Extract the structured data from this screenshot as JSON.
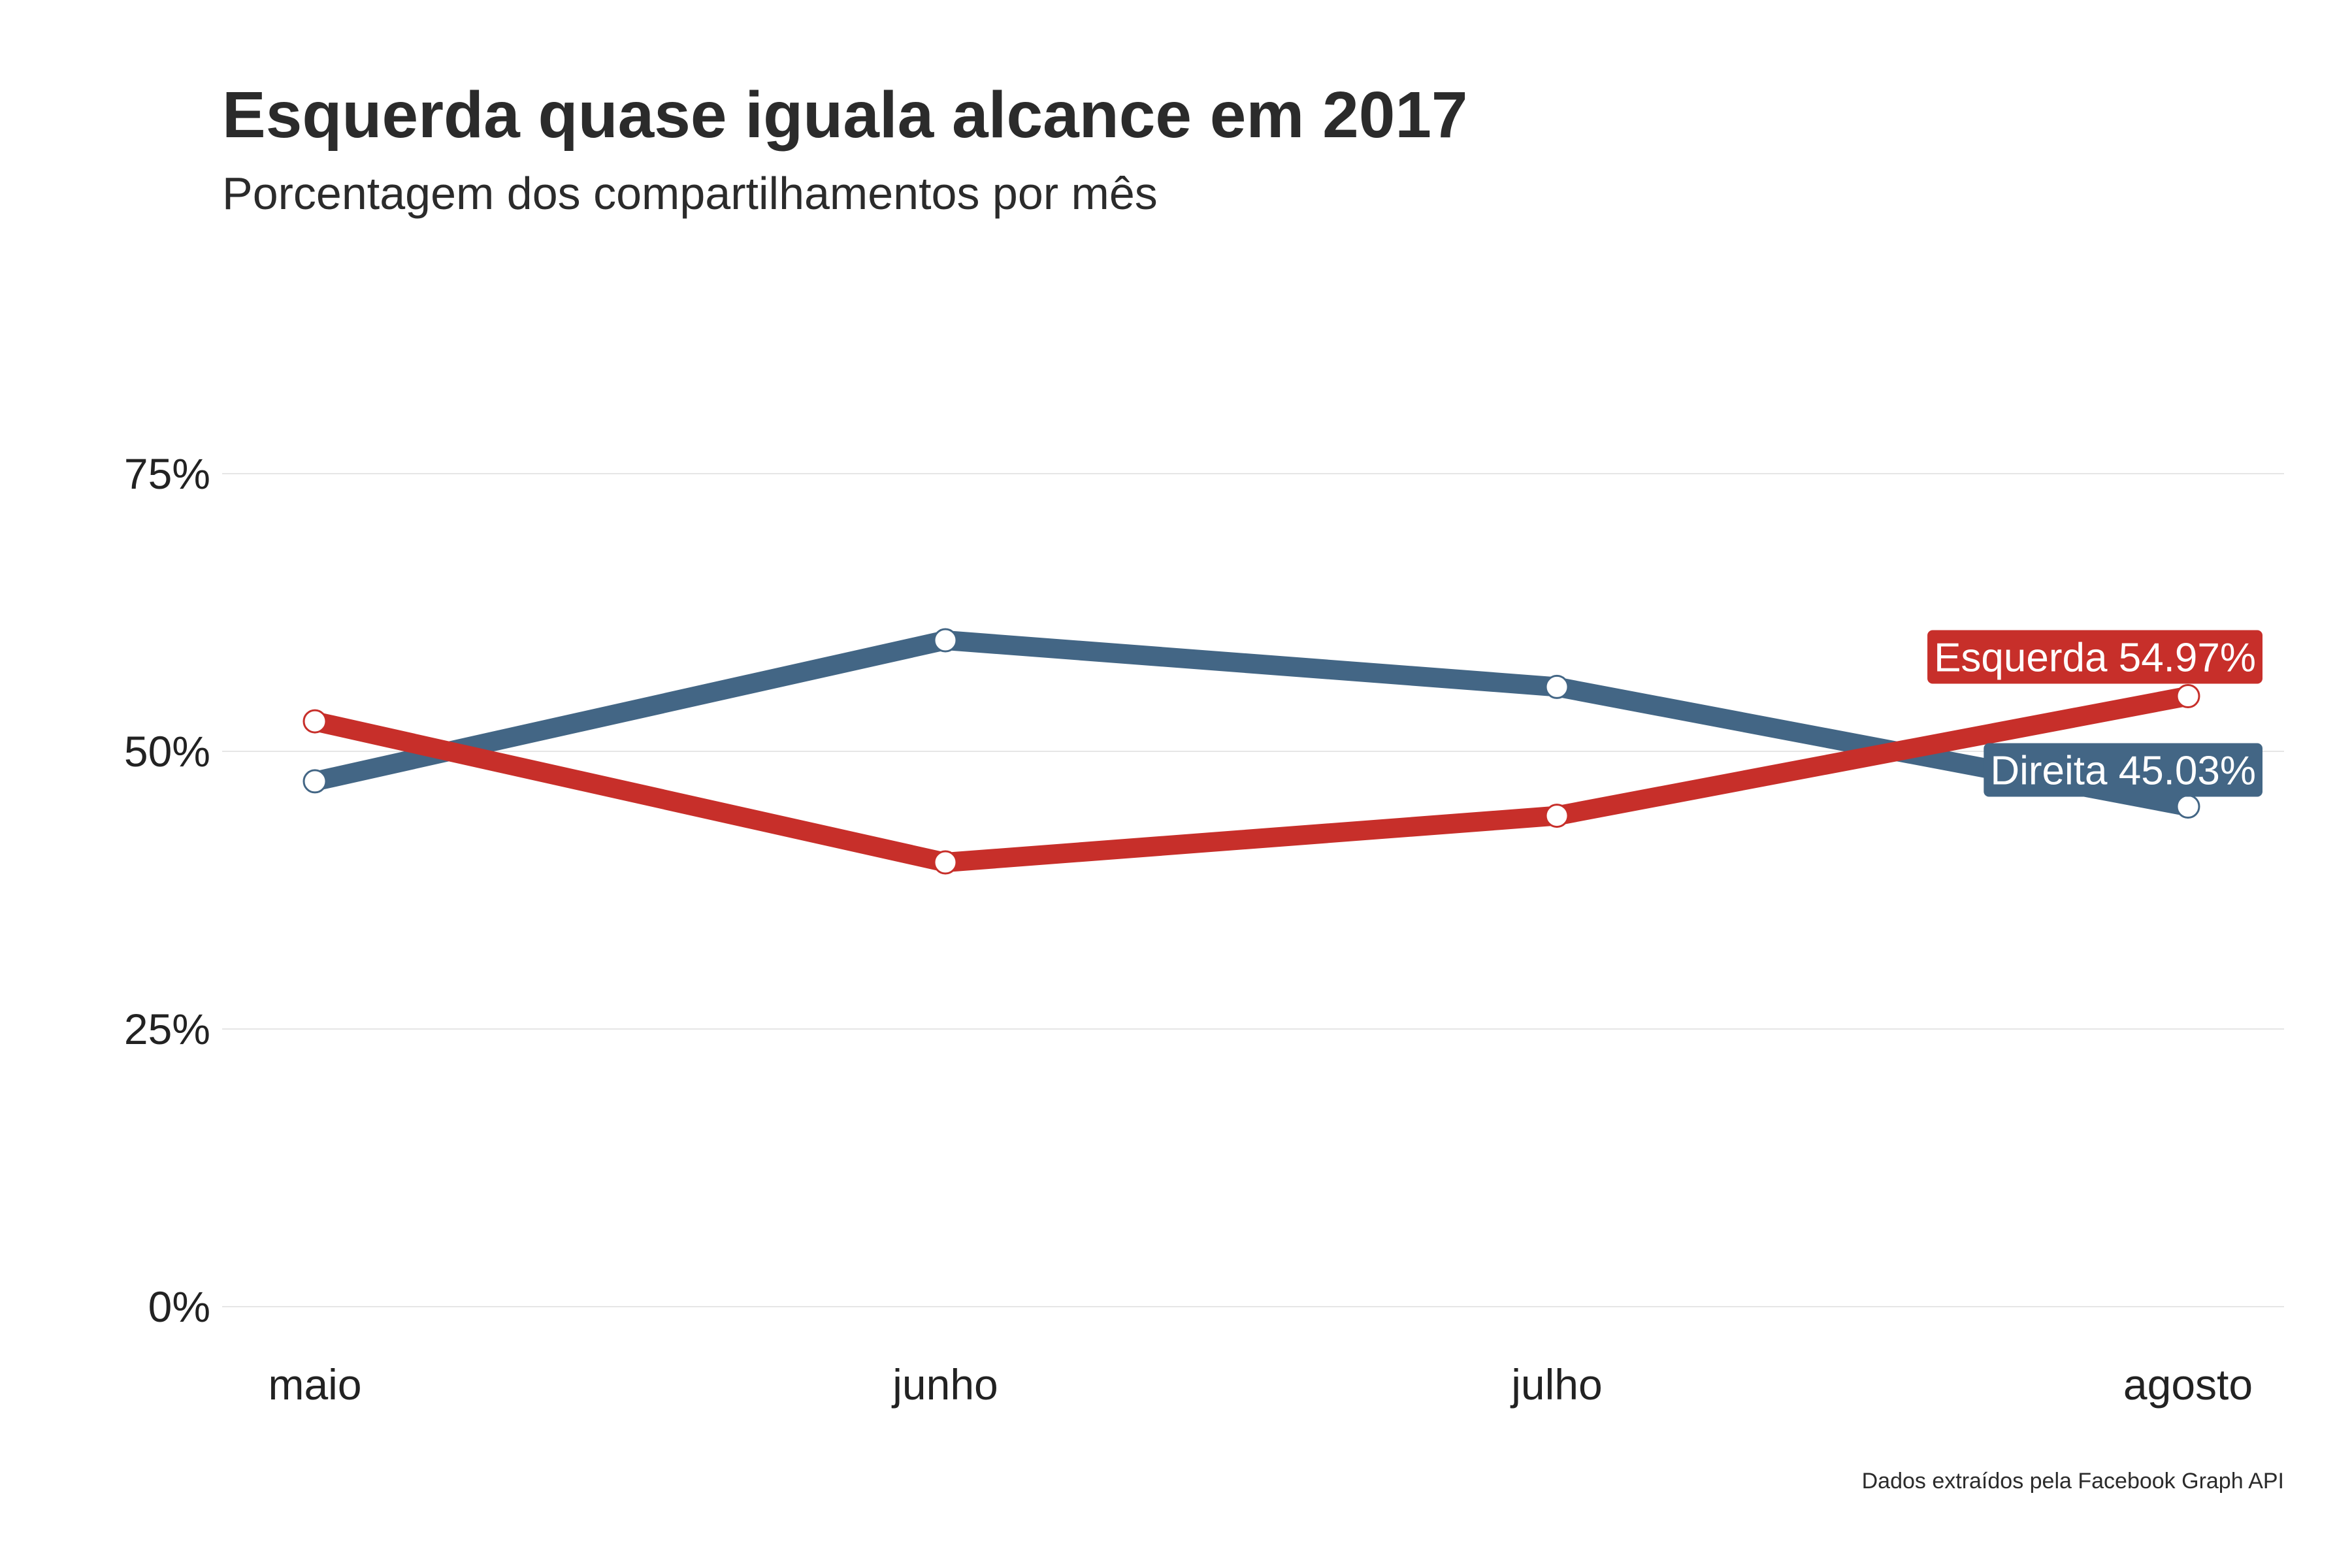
{
  "chart_data": {
    "type": "line",
    "title": "Esquerda quase iguala alcance em 2017",
    "subtitle": "Porcentagem dos compartilhamentos por mês",
    "caption": "Dados extraídos pela Facebook Graph API",
    "xlabel": "",
    "ylabel": "",
    "categories": [
      "maio",
      "junho",
      "julho",
      "agosto"
    ],
    "ylim": [
      0,
      75
    ],
    "yticks": [
      0,
      25,
      50,
      75
    ],
    "ytick_labels": [
      "0%",
      "25%",
      "50%",
      "75%"
    ],
    "grid": "horizontal",
    "legend": "none",
    "series": [
      {
        "key": "direita",
        "values": [
          47.3,
          60.0,
          55.8,
          45.03
        ],
        "color": "#436685",
        "end_label": "Direita 45.03%"
      },
      {
        "key": "esquerda",
        "values": [
          52.7,
          40.0,
          44.2,
          54.97
        ],
        "color": "#c72f2a",
        "end_label": "Esquerda 54.97%"
      }
    ]
  }
}
